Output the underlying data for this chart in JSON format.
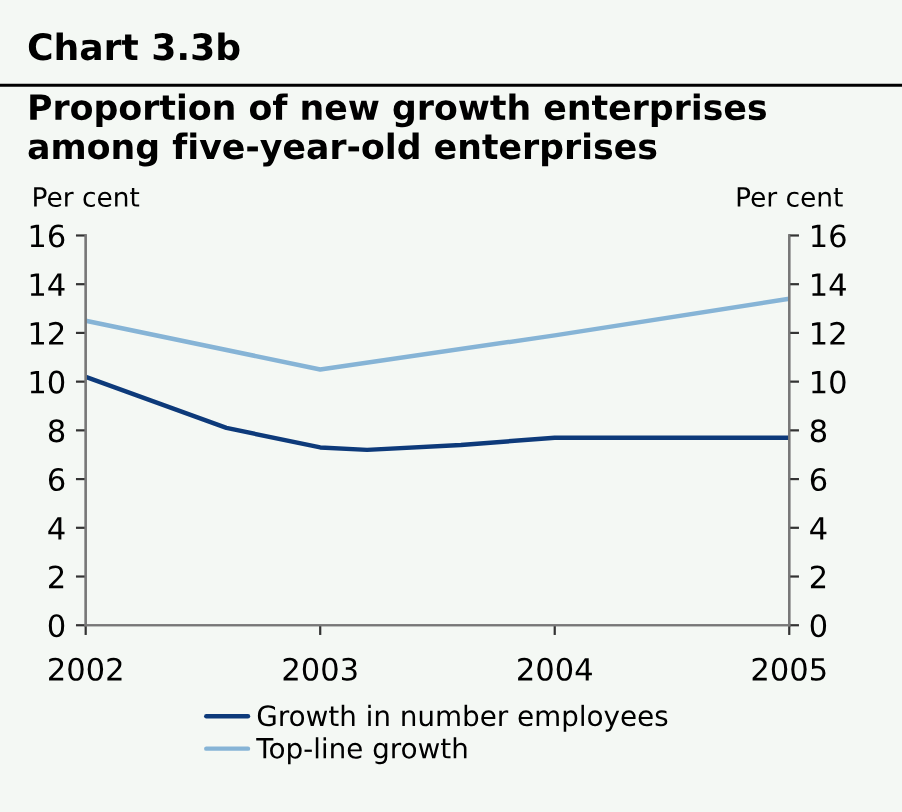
{
  "chart_data": {
    "type": "line",
    "title": "Chart 3.3b",
    "subtitle": "Proportion of new growth enterprises among five-year-old enterprises",
    "ylabel": "Per cent",
    "y2label": "Per cent",
    "xlim": [
      2002,
      2005
    ],
    "xticks": [
      2002,
      2003,
      2004,
      2005
    ],
    "ylim": [
      0,
      16
    ],
    "yticks": [
      0,
      2,
      4,
      6,
      8,
      10,
      12,
      14,
      16
    ],
    "y2lim": [
      0,
      16
    ],
    "y2ticks": [
      0,
      2,
      4,
      6,
      8,
      10,
      12,
      14,
      16
    ],
    "series": [
      {
        "name": "Growth in number employees",
        "color": "#0d3a7a",
        "x": [
          2002,
          2002.6,
          2003,
          2003.2,
          2003.6,
          2004,
          2005
        ],
        "values": [
          10.2,
          8.1,
          7.3,
          7.2,
          7.4,
          7.7,
          7.7
        ]
      },
      {
        "name": "Top-line growth",
        "color": "#86b4d6",
        "x": [
          2002,
          2003,
          2004,
          2005
        ],
        "values": [
          12.5,
          10.5,
          11.9,
          13.4
        ]
      }
    ],
    "legend": "bottom",
    "grid": false,
    "marker": "none",
    "line_style": "solid"
  }
}
